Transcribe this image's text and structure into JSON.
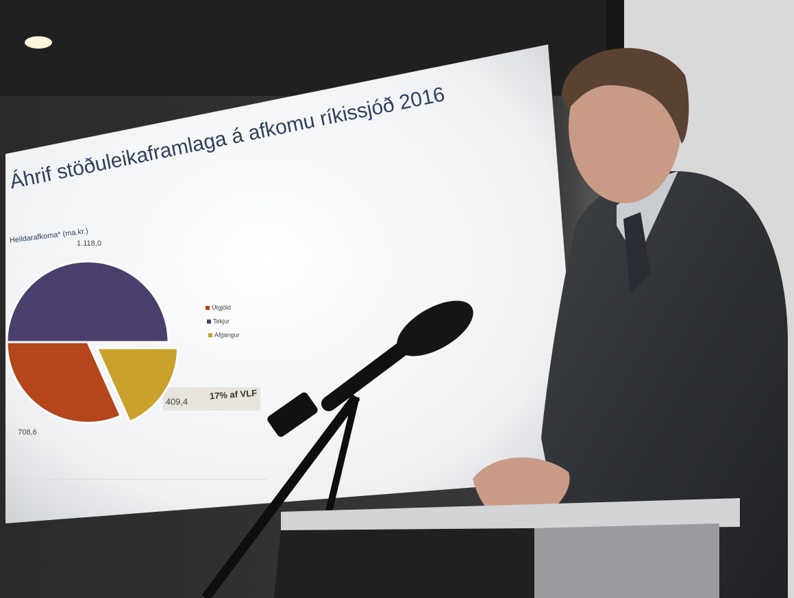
{
  "chart_data": {
    "type": "pie",
    "title": "Áhrif stöðuleikaframlaga á afkomu ríkissjóð 2016",
    "subtitle": "Heildarafkoma* (ma.kr.)",
    "categories": [
      "Útgjöld",
      "Tekjur",
      "Afgangur"
    ],
    "values": [
      708.6,
      1118.0,
      409.4
    ],
    "value_labels": [
      "708,6",
      "1.118,0",
      "409,4"
    ],
    "colors": [
      "#b5451b",
      "#4b3f6e",
      "#c9a22c"
    ],
    "annotation": "17% af VLF"
  }
}
